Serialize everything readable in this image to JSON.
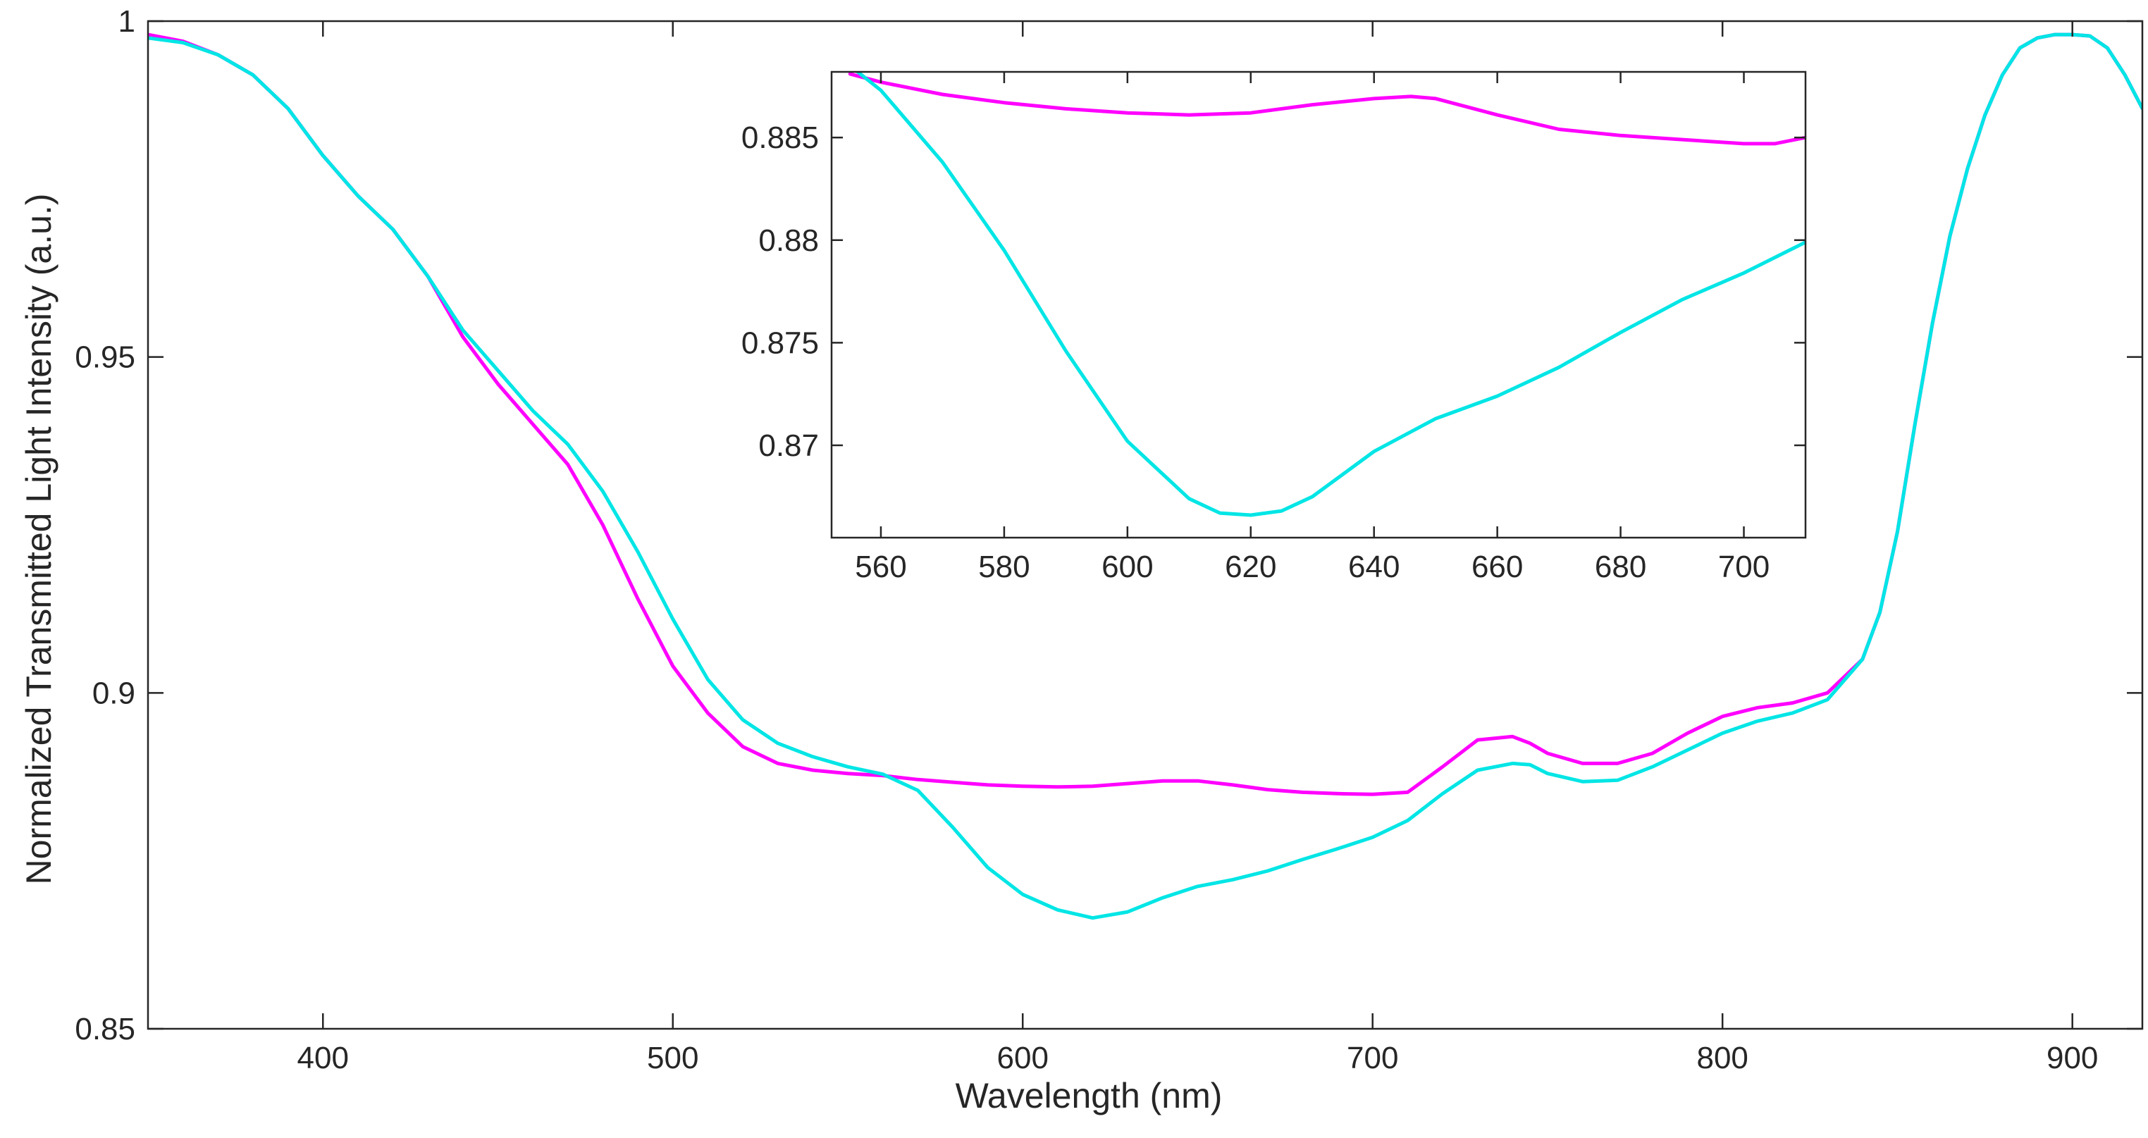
{
  "chart_data": [
    {
      "id": "main",
      "type": "line",
      "title": "",
      "xlabel": "Wavelength (nm)",
      "ylabel": "Normalized Transmitted Light Intensity (a.u.)",
      "xlim": [
        350,
        920
      ],
      "ylim": [
        0.85,
        1.0
      ],
      "xticks": [
        400,
        500,
        600,
        700,
        800,
        900
      ],
      "xtick_labels": [
        "400",
        "500",
        "600",
        "700",
        "800",
        "900"
      ],
      "yticks": [
        0.85,
        0.9,
        0.95,
        1.0
      ],
      "ytick_labels": [
        "0.85",
        "0.9",
        "0.95",
        "1"
      ],
      "grid": false,
      "legend": "none",
      "series": [
        {
          "name": "magenta",
          "color": "#ff00ff",
          "x": [
            350,
            360,
            370,
            380,
            390,
            400,
            410,
            420,
            430,
            440,
            450,
            460,
            470,
            480,
            490,
            500,
            510,
            520,
            530,
            540,
            550,
            560,
            570,
            580,
            590,
            600,
            610,
            620,
            630,
            640,
            650,
            660,
            670,
            680,
            690,
            700,
            710,
            720,
            730,
            740,
            745,
            750,
            760,
            770,
            780,
            790,
            800,
            810,
            820,
            830,
            840,
            845,
            850,
            855,
            860,
            865,
            870,
            875,
            880,
            885,
            890,
            895,
            900,
            905,
            910,
            915,
            920
          ],
          "y": [
            0.998,
            0.997,
            0.995,
            0.992,
            0.987,
            0.98,
            0.974,
            0.969,
            0.962,
            0.953,
            0.946,
            0.94,
            0.934,
            0.925,
            0.914,
            0.904,
            0.897,
            0.892,
            0.8895,
            0.8885,
            0.888,
            0.8877,
            0.8871,
            0.8867,
            0.8863,
            0.8861,
            0.886,
            0.8861,
            0.8865,
            0.8869,
            0.8869,
            0.8863,
            0.8856,
            0.8852,
            0.885,
            0.8849,
            0.8852,
            0.889,
            0.893,
            0.8935,
            0.8925,
            0.891,
            0.8895,
            0.8895,
            0.891,
            0.894,
            0.8965,
            0.8978,
            0.8985,
            0.9,
            0.905,
            0.912,
            0.924,
            0.94,
            0.955,
            0.968,
            0.978,
            0.986,
            0.992,
            0.996,
            0.9975,
            0.998,
            0.998,
            0.9978,
            0.996,
            0.992,
            0.987
          ]
        },
        {
          "name": "cyan",
          "color": "#00e5e5",
          "x": [
            350,
            360,
            370,
            380,
            390,
            400,
            410,
            420,
            430,
            440,
            450,
            460,
            470,
            480,
            490,
            500,
            510,
            520,
            530,
            540,
            550,
            560,
            570,
            580,
            590,
            600,
            610,
            620,
            630,
            640,
            650,
            660,
            670,
            680,
            690,
            700,
            710,
            720,
            730,
            740,
            745,
            750,
            760,
            770,
            780,
            790,
            800,
            810,
            820,
            830,
            840,
            845,
            850,
            855,
            860,
            865,
            870,
            875,
            880,
            885,
            890,
            895,
            900,
            905,
            910,
            915,
            920
          ],
          "y": [
            0.9975,
            0.9968,
            0.995,
            0.992,
            0.987,
            0.98,
            0.974,
            0.969,
            0.962,
            0.954,
            0.948,
            0.942,
            0.937,
            0.93,
            0.921,
            0.911,
            0.902,
            0.896,
            0.8925,
            0.8905,
            0.889,
            0.8879,
            0.8855,
            0.88,
            0.874,
            0.87,
            0.8677,
            0.8665,
            0.8674,
            0.8695,
            0.8712,
            0.8722,
            0.8735,
            0.8752,
            0.8768,
            0.8785,
            0.881,
            0.885,
            0.8885,
            0.8895,
            0.8893,
            0.888,
            0.8868,
            0.887,
            0.889,
            0.8915,
            0.894,
            0.8958,
            0.897,
            0.899,
            0.905,
            0.912,
            0.924,
            0.94,
            0.955,
            0.968,
            0.978,
            0.986,
            0.992,
            0.996,
            0.9975,
            0.998,
            0.998,
            0.9978,
            0.996,
            0.992,
            0.987
          ]
        }
      ]
    },
    {
      "id": "inset",
      "type": "line",
      "title": "",
      "xlabel": "",
      "ylabel": "",
      "xlim": [
        552,
        710
      ],
      "ylim": [
        0.8655,
        0.8882
      ],
      "xticks": [
        560,
        580,
        600,
        620,
        640,
        660,
        680,
        700
      ],
      "xtick_labels": [
        "560",
        "580",
        "600",
        "620",
        "640",
        "660",
        "680",
        "700"
      ],
      "yticks": [
        0.87,
        0.875,
        0.88,
        0.885
      ],
      "ytick_labels": [
        "0.87",
        "0.875",
        "0.88",
        "0.885"
      ],
      "grid": false,
      "legend": "none",
      "series": [
        {
          "name": "magenta",
          "color": "#ff00ff",
          "x": [
            555,
            560,
            570,
            580,
            590,
            600,
            610,
            620,
            630,
            640,
            646,
            650,
            660,
            670,
            680,
            690,
            700,
            705,
            710
          ],
          "y": [
            0.8881,
            0.8877,
            0.8871,
            0.8867,
            0.8864,
            0.8862,
            0.8861,
            0.8862,
            0.8866,
            0.8869,
            0.887,
            0.8869,
            0.8861,
            0.8854,
            0.8851,
            0.8849,
            0.8847,
            0.8847,
            0.885
          ]
        },
        {
          "name": "cyan",
          "color": "#00e5e5",
          "x": [
            555,
            560,
            570,
            580,
            590,
            600,
            610,
            615,
            620,
            625,
            630,
            640,
            650,
            660,
            670,
            680,
            690,
            700,
            710
          ],
          "y": [
            0.8885,
            0.8873,
            0.8838,
            0.8795,
            0.8746,
            0.8702,
            0.8674,
            0.8667,
            0.8666,
            0.8668,
            0.8675,
            0.8697,
            0.8713,
            0.8724,
            0.8738,
            0.8755,
            0.8771,
            0.8784,
            0.8799
          ]
        }
      ]
    }
  ]
}
